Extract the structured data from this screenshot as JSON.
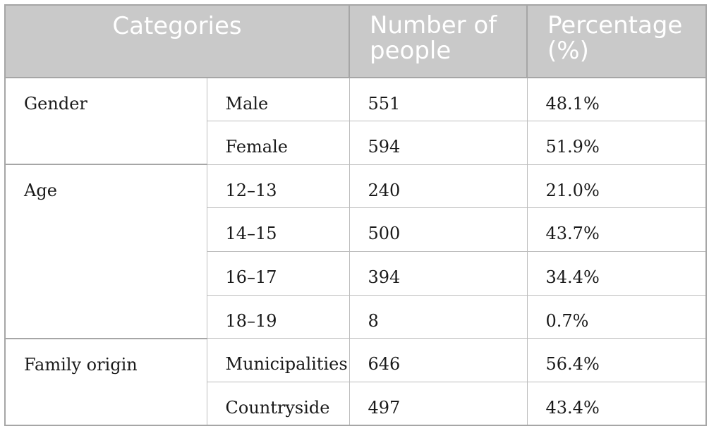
{
  "table": {
    "headers": {
      "categories": "Categories",
      "number_of_people": "Number of people",
      "percentage": "Percentage (%)"
    },
    "groups": [
      {
        "label": "Gender",
        "rows": [
          {
            "category": "Male",
            "count": "551",
            "percent": "48.1%"
          },
          {
            "category": "Female",
            "count": "594",
            "percent": "51.9%"
          }
        ]
      },
      {
        "label": "Age",
        "rows": [
          {
            "category": "12–13",
            "count": "240",
            "percent": "21.0%"
          },
          {
            "category": "14–15",
            "count": "500",
            "percent": "43.7%"
          },
          {
            "category": "16–17",
            "count": "394",
            "percent": "34.4%"
          },
          {
            "category": "18–19",
            "count": "8",
            "percent": "0.7%"
          }
        ]
      },
      {
        "label": "Family origin",
        "rows": [
          {
            "category": "Municipalities",
            "count": "646",
            "percent": "56.4%"
          },
          {
            "category": "Countryside",
            "count": "497",
            "percent": "43.4%"
          }
        ]
      }
    ]
  }
}
